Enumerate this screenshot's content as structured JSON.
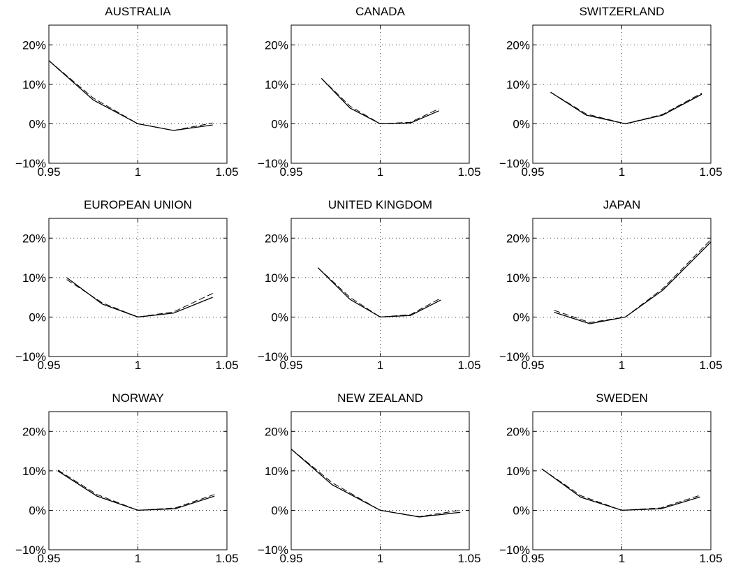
{
  "chart_data": [
    {
      "type": "line",
      "title": "AUSTRALIA",
      "xlim": [
        0.95,
        1.05
      ],
      "ylim": [
        -0.1,
        0.25
      ],
      "xticks": [
        0.95,
        1,
        1.05
      ],
      "xtick_labels": [
        "0.95",
        "1",
        "1.05"
      ],
      "yticks": [
        -0.1,
        0,
        0.1,
        0.2
      ],
      "ytick_labels": [
        "−10%",
        "0%",
        "10%",
        "20%"
      ],
      "grid": true,
      "series": [
        {
          "style": "solid",
          "x": [
            0.95,
            0.975,
            1.0,
            1.02,
            1.042
          ],
          "y": [
            0.16,
            0.06,
            0.0,
            -0.017,
            -0.003
          ]
        },
        {
          "style": "dashed",
          "x": [
            0.95,
            0.975,
            1.0,
            1.02,
            1.042
          ],
          "y": [
            0.16,
            0.065,
            0.0,
            -0.017,
            0.002
          ]
        }
      ]
    },
    {
      "type": "line",
      "title": "CANADA",
      "xlim": [
        0.95,
        1.05
      ],
      "ylim": [
        -0.1,
        0.25
      ],
      "xticks": [
        0.95,
        1,
        1.05
      ],
      "xtick_labels": [
        "0.95",
        "1",
        "1.05"
      ],
      "yticks": [
        -0.1,
        0,
        0.1,
        0.2
      ],
      "ytick_labels": [
        "−10%",
        "0%",
        "10%",
        "20%"
      ],
      "grid": true,
      "series": [
        {
          "style": "solid",
          "x": [
            0.967,
            0.983,
            1.0,
            1.017,
            1.033
          ],
          "y": [
            0.115,
            0.04,
            0.0,
            0.002,
            0.033
          ]
        },
        {
          "style": "dashed",
          "x": [
            0.967,
            0.983,
            1.0,
            1.017,
            1.033
          ],
          "y": [
            0.115,
            0.045,
            0.0,
            0.004,
            0.038
          ]
        }
      ]
    },
    {
      "type": "line",
      "title": "SWITZERLAND",
      "xlim": [
        0.95,
        1.05
      ],
      "ylim": [
        -0.1,
        0.25
      ],
      "xticks": [
        0.95,
        1,
        1.05
      ],
      "xtick_labels": [
        "0.95",
        "1",
        "1.05"
      ],
      "yticks": [
        -0.1,
        0,
        0.1,
        0.2
      ],
      "ytick_labels": [
        "−10%",
        "0%",
        "10%",
        "20%"
      ],
      "grid": true,
      "series": [
        {
          "style": "solid",
          "x": [
            0.96,
            0.98,
            1.002,
            1.023,
            1.045
          ],
          "y": [
            0.08,
            0.022,
            0.0,
            0.022,
            0.075
          ]
        },
        {
          "style": "dashed",
          "x": [
            0.96,
            0.98,
            1.002,
            1.023,
            1.045
          ],
          "y": [
            0.08,
            0.025,
            0.0,
            0.024,
            0.078
          ]
        }
      ]
    },
    {
      "type": "line",
      "title": "EUROPEAN UNION",
      "xlim": [
        0.95,
        1.05
      ],
      "ylim": [
        -0.1,
        0.25
      ],
      "xticks": [
        0.95,
        1,
        1.05
      ],
      "xtick_labels": [
        "0.95",
        "1",
        "1.05"
      ],
      "yticks": [
        -0.1,
        0,
        0.1,
        0.2
      ],
      "ytick_labels": [
        "−10%",
        "0%",
        "10%",
        "20%"
      ],
      "grid": true,
      "series": [
        {
          "style": "solid",
          "x": [
            0.96,
            0.98,
            1.0,
            1.02,
            1.042
          ],
          "y": [
            0.1,
            0.033,
            0.0,
            0.01,
            0.05
          ]
        },
        {
          "style": "dashed",
          "x": [
            0.96,
            0.98,
            1.0,
            1.02,
            1.042
          ],
          "y": [
            0.095,
            0.036,
            0.0,
            0.013,
            0.06
          ]
        }
      ]
    },
    {
      "type": "line",
      "title": "UNITED KINGDOM",
      "xlim": [
        0.95,
        1.05
      ],
      "ylim": [
        -0.1,
        0.25
      ],
      "xticks": [
        0.95,
        1,
        1.05
      ],
      "xtick_labels": [
        "0.95",
        "1",
        "1.05"
      ],
      "yticks": [
        -0.1,
        0,
        0.1,
        0.2
      ],
      "ytick_labels": [
        "−10%",
        "0%",
        "10%",
        "20%"
      ],
      "grid": true,
      "series": [
        {
          "style": "solid",
          "x": [
            0.965,
            0.983,
            1.0,
            1.017,
            1.034
          ],
          "y": [
            0.125,
            0.045,
            0.0,
            0.004,
            0.043
          ]
        },
        {
          "style": "dashed",
          "x": [
            0.965,
            0.983,
            1.0,
            1.017,
            1.034
          ],
          "y": [
            0.125,
            0.05,
            0.0,
            0.006,
            0.048
          ]
        }
      ]
    },
    {
      "type": "line",
      "title": "JAPAN",
      "xlim": [
        0.95,
        1.05
      ],
      "ylim": [
        -0.1,
        0.25
      ],
      "xticks": [
        0.95,
        1,
        1.05
      ],
      "xtick_labels": [
        "0.95",
        "1",
        "1.05"
      ],
      "yticks": [
        -0.1,
        0,
        0.1,
        0.2
      ],
      "ytick_labels": [
        "−10%",
        "0%",
        "10%",
        "20%"
      ],
      "grid": true,
      "series": [
        {
          "style": "solid",
          "x": [
            0.962,
            0.982,
            1.002,
            1.023,
            1.05
          ],
          "y": [
            0.012,
            -0.017,
            0.0,
            0.068,
            0.19
          ]
        },
        {
          "style": "dashed",
          "x": [
            0.962,
            0.982,
            1.002,
            1.023,
            1.05
          ],
          "y": [
            0.017,
            -0.014,
            0.0,
            0.072,
            0.196
          ]
        }
      ]
    },
    {
      "type": "line",
      "title": "NORWAY",
      "xlim": [
        0.95,
        1.05
      ],
      "ylim": [
        -0.1,
        0.25
      ],
      "xticks": [
        0.95,
        1,
        1.05
      ],
      "xtick_labels": [
        "0.95",
        "1",
        "1.05"
      ],
      "yticks": [
        -0.1,
        0,
        0.1,
        0.2
      ],
      "ytick_labels": [
        "−10%",
        "0%",
        "10%",
        "20%"
      ],
      "grid": true,
      "series": [
        {
          "style": "solid",
          "x": [
            0.955,
            0.977,
            1.0,
            1.021,
            1.043
          ],
          "y": [
            0.1,
            0.036,
            0.0,
            0.004,
            0.036
          ]
        },
        {
          "style": "dashed",
          "x": [
            0.955,
            0.977,
            1.0,
            1.021,
            1.043
          ],
          "y": [
            0.102,
            0.04,
            0.0,
            0.006,
            0.04
          ]
        }
      ]
    },
    {
      "type": "line",
      "title": "NEW ZEALAND",
      "xlim": [
        0.95,
        1.05
      ],
      "ylim": [
        -0.1,
        0.25
      ],
      "xticks": [
        0.95,
        1,
        1.05
      ],
      "xtick_labels": [
        "0.95",
        "1",
        "1.05"
      ],
      "yticks": [
        -0.1,
        0,
        0.1,
        0.2
      ],
      "ytick_labels": [
        "−10%",
        "0%",
        "10%",
        "20%"
      ],
      "grid": true,
      "series": [
        {
          "style": "solid",
          "x": [
            0.95,
            0.973,
            1.0,
            1.022,
            1.045
          ],
          "y": [
            0.155,
            0.065,
            0.0,
            -0.017,
            -0.005
          ]
        },
        {
          "style": "dashed",
          "x": [
            0.95,
            0.973,
            1.0,
            1.022,
            1.045
          ],
          "y": [
            0.155,
            0.07,
            0.0,
            -0.016,
            0.0
          ]
        }
      ]
    },
    {
      "type": "line",
      "title": "SWEDEN",
      "xlim": [
        0.95,
        1.05
      ],
      "ylim": [
        -0.1,
        0.25
      ],
      "xticks": [
        0.95,
        1,
        1.05
      ],
      "xtick_labels": [
        "0.95",
        "1",
        "1.05"
      ],
      "yticks": [
        -0.1,
        0,
        0.1,
        0.2
      ],
      "ytick_labels": [
        "−10%",
        "0%",
        "10%",
        "20%"
      ],
      "grid": true,
      "series": [
        {
          "style": "solid",
          "x": [
            0.955,
            0.977,
            1.0,
            1.022,
            1.044
          ],
          "y": [
            0.105,
            0.033,
            0.0,
            0.004,
            0.034
          ]
        },
        {
          "style": "dashed",
          "x": [
            0.955,
            0.977,
            1.0,
            1.022,
            1.044
          ],
          "y": [
            0.105,
            0.037,
            0.0,
            0.006,
            0.038
          ]
        }
      ]
    }
  ]
}
